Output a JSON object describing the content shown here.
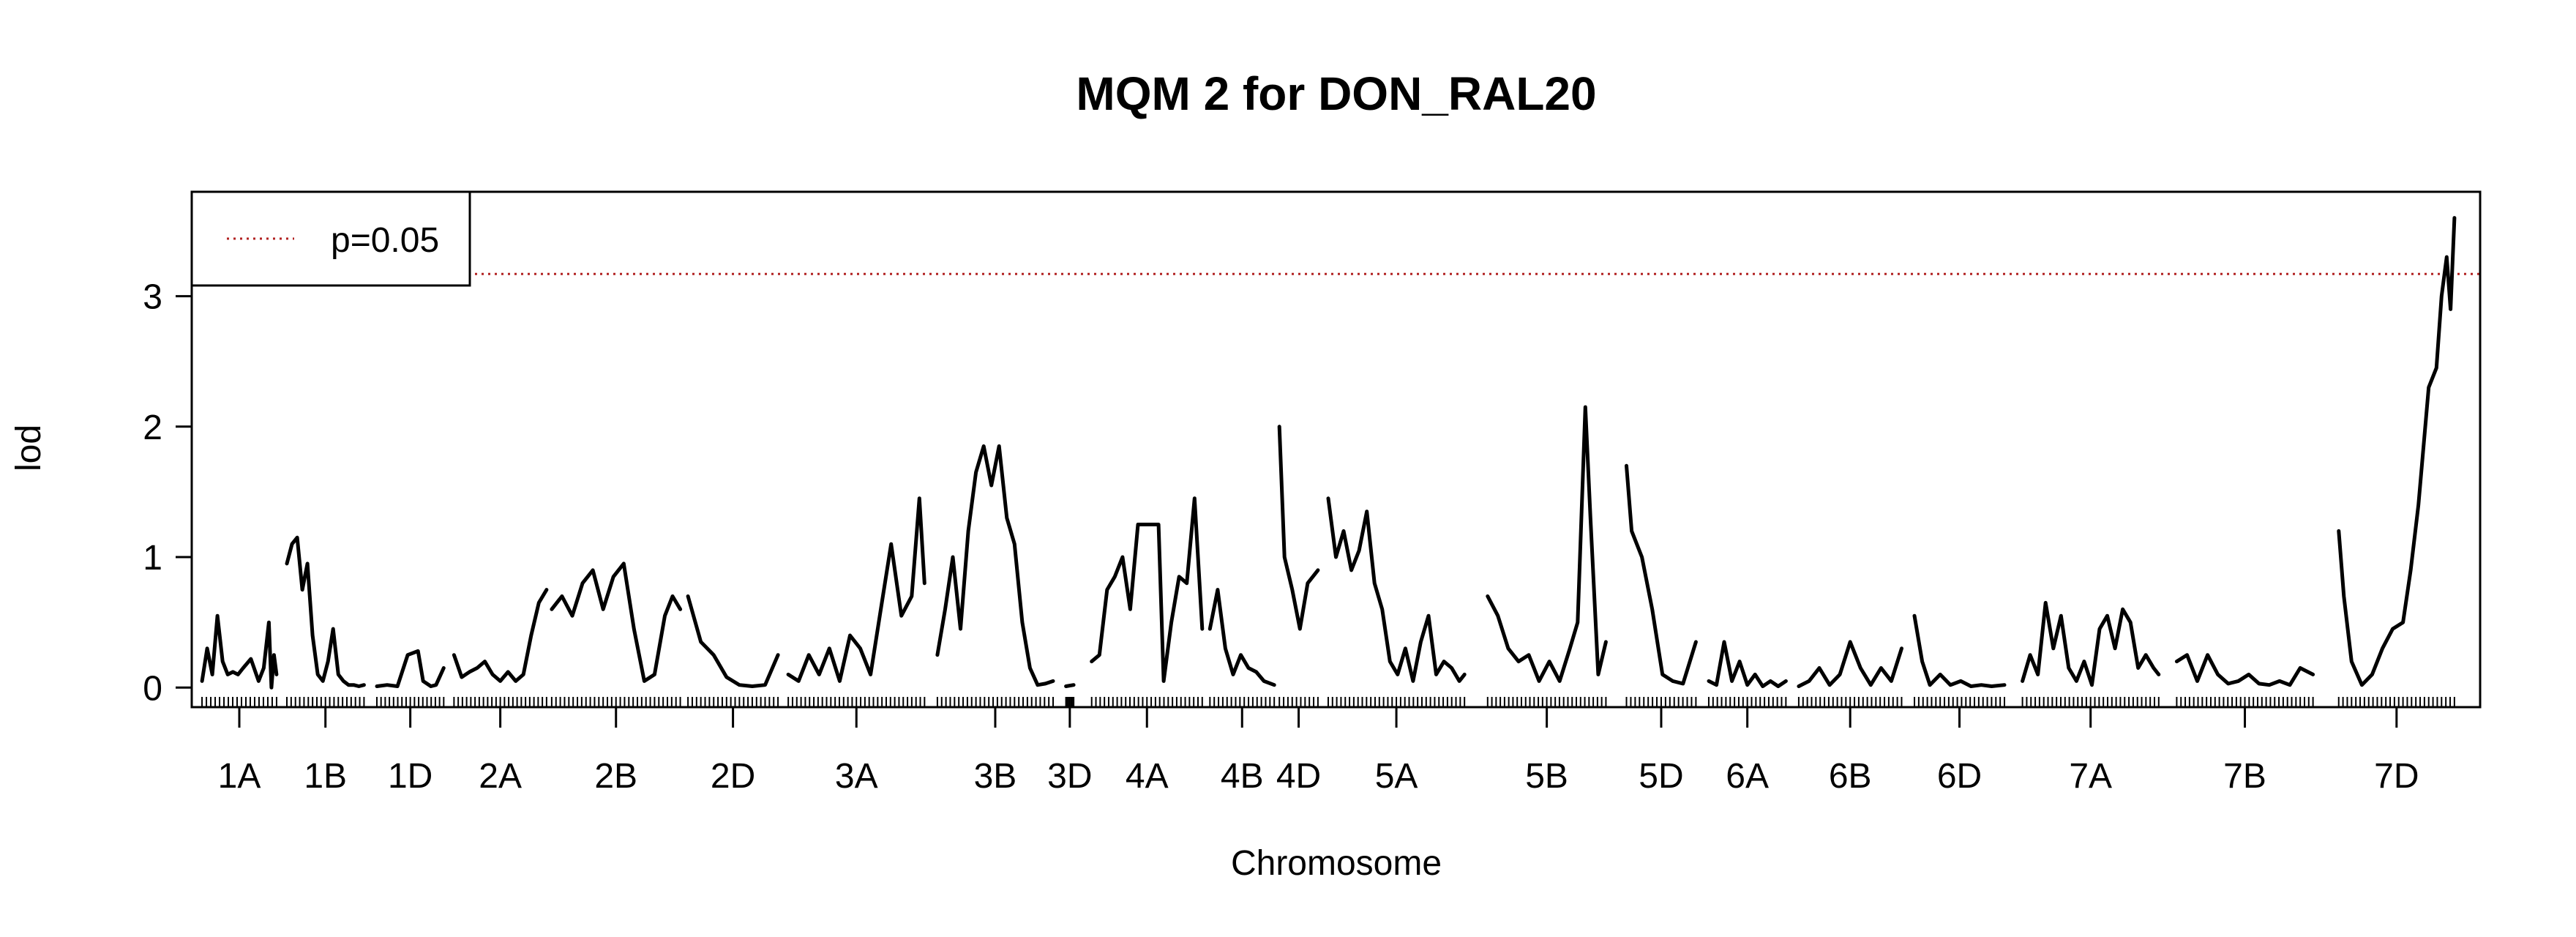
{
  "chart_data": {
    "type": "line",
    "title": "MQM 2 for DON_RAL20",
    "xlabel": "Chromosome",
    "ylabel": "lod",
    "ylim": [
      -0.15,
      3.8
    ],
    "yticks": [
      0,
      1,
      2,
      3
    ],
    "legend": {
      "position": "top-left",
      "entries": [
        {
          "label": "p=0.05",
          "color": "#b22222",
          "style": "dotted"
        }
      ]
    },
    "threshold": {
      "label": "p=0.05",
      "value": 3.17,
      "color": "#b22222"
    },
    "line_color": "#000000",
    "chromosomes": [
      {
        "name": "1A",
        "span": [
          0.4,
          3.3
        ],
        "x": [
          0.4,
          0.6,
          0.8,
          1.0,
          1.2,
          1.4,
          1.6,
          1.8,
          2.0,
          2.3,
          2.6,
          2.8,
          3.0,
          3.1,
          3.2,
          3.3
        ],
        "y": [
          0.05,
          0.3,
          0.1,
          0.55,
          0.2,
          0.1,
          0.12,
          0.1,
          0.15,
          0.22,
          0.05,
          0.15,
          0.5,
          0.0,
          0.25,
          0.1
        ]
      },
      {
        "name": "1B",
        "span": [
          3.7,
          6.7
        ],
        "x": [
          3.7,
          3.9,
          4.1,
          4.3,
          4.5,
          4.7,
          4.9,
          5.1,
          5.3,
          5.5,
          5.7,
          5.9,
          6.1,
          6.3,
          6.5,
          6.7
        ],
        "y": [
          0.95,
          1.1,
          1.15,
          0.75,
          0.95,
          0.4,
          0.1,
          0.05,
          0.2,
          0.45,
          0.1,
          0.05,
          0.02,
          0.02,
          0.01,
          0.02
        ]
      },
      {
        "name": "1D",
        "span": [
          7.2,
          9.8
        ],
        "x": [
          7.2,
          7.6,
          8.0,
          8.4,
          8.8,
          9.0,
          9.3,
          9.5,
          9.8
        ],
        "y": [
          0.01,
          0.02,
          0.01,
          0.25,
          0.28,
          0.05,
          0.01,
          0.02,
          0.15
        ]
      },
      {
        "name": "2A",
        "span": [
          10.2,
          13.8
        ],
        "x": [
          10.2,
          10.5,
          10.8,
          11.1,
          11.4,
          11.7,
          12.0,
          12.3,
          12.6,
          12.9,
          13.2,
          13.5,
          13.8
        ],
        "y": [
          0.25,
          0.08,
          0.12,
          0.15,
          0.2,
          0.1,
          0.05,
          0.12,
          0.05,
          0.1,
          0.4,
          0.65,
          0.75
        ]
      },
      {
        "name": "2B",
        "span": [
          14.0,
          19.0
        ],
        "x": [
          14.0,
          14.4,
          14.8,
          15.2,
          15.6,
          16.0,
          16.4,
          16.8,
          17.2,
          17.6,
          18.0,
          18.4,
          18.7,
          19.0
        ],
        "y": [
          0.6,
          0.7,
          0.55,
          0.8,
          0.9,
          0.6,
          0.85,
          0.95,
          0.45,
          0.05,
          0.1,
          0.55,
          0.7,
          0.6
        ]
      },
      {
        "name": "2D",
        "span": [
          19.3,
          22.8
        ],
        "x": [
          19.3,
          19.8,
          20.3,
          20.8,
          21.3,
          21.8,
          22.3,
          22.8
        ],
        "y": [
          0.7,
          0.35,
          0.25,
          0.08,
          0.02,
          0.01,
          0.02,
          0.25
        ]
      },
      {
        "name": "3A",
        "span": [
          23.2,
          28.5
        ],
        "x": [
          23.2,
          23.6,
          24.0,
          24.4,
          24.8,
          25.2,
          25.6,
          26.0,
          26.4,
          26.8,
          27.2,
          27.6,
          28.0,
          28.3,
          28.5
        ],
        "y": [
          0.1,
          0.05,
          0.25,
          0.1,
          0.3,
          0.05,
          0.4,
          0.3,
          0.1,
          0.6,
          1.1,
          0.55,
          0.7,
          1.45,
          0.8
        ]
      },
      {
        "name": "3B",
        "span": [
          29.0,
          33.5
        ],
        "x": [
          29.0,
          29.3,
          29.6,
          29.9,
          30.2,
          30.5,
          30.8,
          31.1,
          31.4,
          31.7,
          32.0,
          32.3,
          32.6,
          32.9,
          33.2,
          33.5
        ],
        "y": [
          0.25,
          0.6,
          1.0,
          0.45,
          1.2,
          1.65,
          1.85,
          1.55,
          1.85,
          1.3,
          1.1,
          0.5,
          0.15,
          0.02,
          0.03,
          0.05
        ]
      },
      {
        "name": "3D",
        "span": [
          34.0,
          34.3
        ],
        "x": [
          34.0,
          34.3
        ],
        "y": [
          0.01,
          0.02
        ]
      },
      {
        "name": "4A",
        "span": [
          35.0,
          39.3
        ],
        "x": [
          35.0,
          35.3,
          35.6,
          35.9,
          36.2,
          36.5,
          36.8,
          37.0,
          37.6,
          37.8,
          38.1,
          38.4,
          38.7,
          39.0,
          39.3
        ],
        "y": [
          0.2,
          0.25,
          0.75,
          0.85,
          1.0,
          0.6,
          1.25,
          1.25,
          1.25,
          0.05,
          0.5,
          0.85,
          0.8,
          1.45,
          0.45
        ]
      },
      {
        "name": "4B",
        "span": [
          39.6,
          42.1
        ],
        "x": [
          39.6,
          39.9,
          40.2,
          40.5,
          40.8,
          41.1,
          41.4,
          41.7,
          42.1
        ],
        "y": [
          0.45,
          0.75,
          0.3,
          0.1,
          0.25,
          0.15,
          0.12,
          0.05,
          0.02
        ]
      },
      {
        "name": "4D",
        "span": [
          42.3,
          43.8
        ],
        "x": [
          42.3,
          42.5,
          42.8,
          43.1,
          43.4,
          43.8
        ],
        "y": [
          2.0,
          1.0,
          0.75,
          0.45,
          0.8,
          0.9
        ]
      },
      {
        "name": "5A",
        "span": [
          44.2,
          49.5
        ],
        "x": [
          44.2,
          44.5,
          44.8,
          45.1,
          45.4,
          45.7,
          46.0,
          46.3,
          46.6,
          46.9,
          47.2,
          47.5,
          47.8,
          48.1,
          48.4,
          48.7,
          49.0,
          49.3,
          49.5
        ],
        "y": [
          1.45,
          1.0,
          1.2,
          0.9,
          1.05,
          1.35,
          0.8,
          0.6,
          0.2,
          0.1,
          0.3,
          0.05,
          0.35,
          0.55,
          0.1,
          0.2,
          0.15,
          0.05,
          0.1
        ]
      },
      {
        "name": "5B",
        "span": [
          50.4,
          55.0
        ],
        "x": [
          50.4,
          50.8,
          51.2,
          51.6,
          52.0,
          52.4,
          52.8,
          53.2,
          53.6,
          53.9,
          54.2,
          54.4,
          54.7,
          55.0
        ],
        "y": [
          0.7,
          0.55,
          0.3,
          0.2,
          0.25,
          0.05,
          0.2,
          0.05,
          0.3,
          0.5,
          2.15,
          1.3,
          0.1,
          0.35
        ]
      },
      {
        "name": "5D",
        "span": [
          55.8,
          58.5
        ],
        "x": [
          55.8,
          56.0,
          56.4,
          56.8,
          57.2,
          57.6,
          58.0,
          58.5
        ],
        "y": [
          1.7,
          1.2,
          1.0,
          0.6,
          0.1,
          0.05,
          0.03,
          0.35
        ]
      },
      {
        "name": "6A",
        "span": [
          59.0,
          62.0
        ],
        "x": [
          59.0,
          59.3,
          59.6,
          59.9,
          60.2,
          60.5,
          60.8,
          61.1,
          61.4,
          61.7,
          62.0
        ],
        "y": [
          0.05,
          0.02,
          0.35,
          0.05,
          0.2,
          0.02,
          0.1,
          0.01,
          0.05,
          0.01,
          0.05
        ]
      },
      {
        "name": "6B",
        "span": [
          62.5,
          66.5
        ],
        "x": [
          62.5,
          62.9,
          63.3,
          63.7,
          64.1,
          64.5,
          64.9,
          65.3,
          65.7,
          66.1,
          66.5
        ],
        "y": [
          0.01,
          0.05,
          0.15,
          0.02,
          0.1,
          0.35,
          0.15,
          0.02,
          0.15,
          0.05,
          0.3
        ]
      },
      {
        "name": "6D",
        "span": [
          67.0,
          70.5
        ],
        "x": [
          67.0,
          67.3,
          67.6,
          68.0,
          68.4,
          68.8,
          69.2,
          69.6,
          70.0,
          70.5
        ],
        "y": [
          0.55,
          0.2,
          0.02,
          0.1,
          0.02,
          0.05,
          0.01,
          0.02,
          0.01,
          0.02
        ]
      },
      {
        "name": "7A",
        "span": [
          71.2,
          76.5
        ],
        "x": [
          71.2,
          71.5,
          71.8,
          72.1,
          72.4,
          72.7,
          73.0,
          73.3,
          73.6,
          73.9,
          74.2,
          74.5,
          74.8,
          75.1,
          75.4,
          75.7,
          76.0,
          76.3,
          76.5
        ],
        "y": [
          0.05,
          0.25,
          0.1,
          0.65,
          0.3,
          0.55,
          0.15,
          0.05,
          0.2,
          0.02,
          0.45,
          0.55,
          0.3,
          0.6,
          0.5,
          0.15,
          0.25,
          0.15,
          0.1
        ]
      },
      {
        "name": "7B",
        "span": [
          77.2,
          82.5
        ],
        "x": [
          77.2,
          77.6,
          78.0,
          78.4,
          78.8,
          79.2,
          79.6,
          80.0,
          80.4,
          80.8,
          81.2,
          81.6,
          82.0,
          82.5
        ],
        "y": [
          0.2,
          0.25,
          0.05,
          0.25,
          0.1,
          0.03,
          0.05,
          0.1,
          0.03,
          0.02,
          0.05,
          0.02,
          0.15,
          0.1
        ]
      },
      {
        "name": "7D",
        "span": [
          83.5,
          88.0
        ],
        "x": [
          83.5,
          83.7,
          84.0,
          84.4,
          84.8,
          85.2,
          85.6,
          86.0,
          86.3,
          86.6,
          87.0,
          87.3,
          87.5,
          87.7,
          87.85,
          88.0
        ],
        "y": [
          1.2,
          0.7,
          0.2,
          0.02,
          0.1,
          0.3,
          0.45,
          0.5,
          0.9,
          1.4,
          2.3,
          2.45,
          3.0,
          3.3,
          2.9,
          3.6
        ]
      }
    ]
  }
}
